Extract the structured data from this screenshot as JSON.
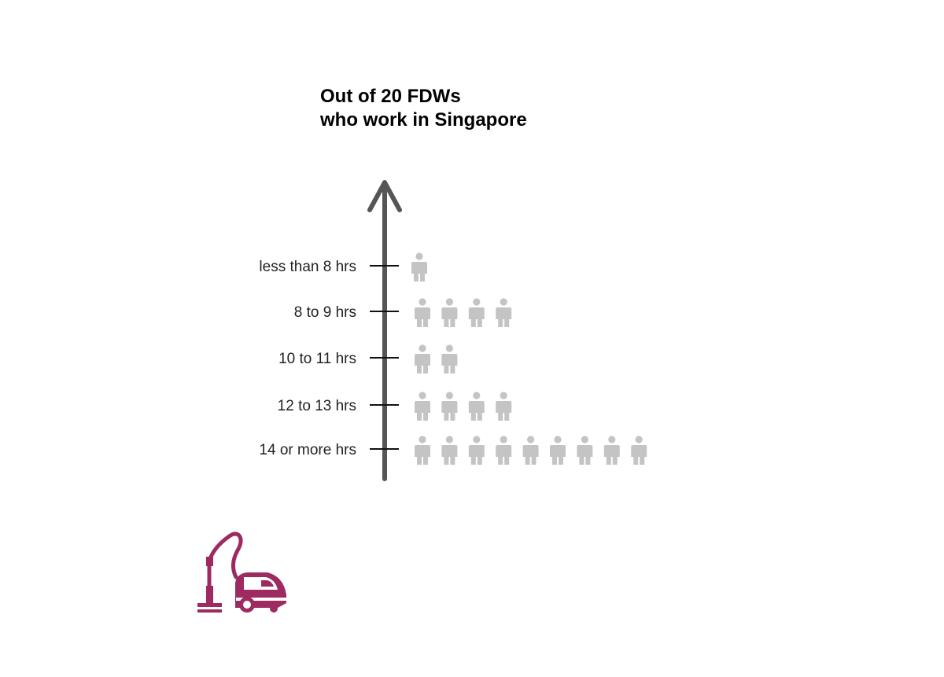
{
  "chart_data": {
    "type": "pictogram",
    "title": "Out of 20 FDWs\nwho work in Singapore",
    "title_lines": [
      "Out of 20 FDWs",
      "who work in Singapore"
    ],
    "categories": [
      "less than 8 hrs",
      "8 to 9 hrs",
      "10 to 11 hrs",
      "12 to 13 hrs",
      "14 or more hrs"
    ],
    "values": [
      1,
      4,
      2,
      4,
      9
    ],
    "total": 20,
    "icon": "person-icon",
    "xlabel": "",
    "ylabel": ""
  },
  "colors": {
    "person": "#c4c4c4",
    "axis": "#555555",
    "tick": "#111111",
    "vacuum": "#9e2a62"
  },
  "decoration": {
    "icon": "vacuum-cleaner-icon"
  }
}
